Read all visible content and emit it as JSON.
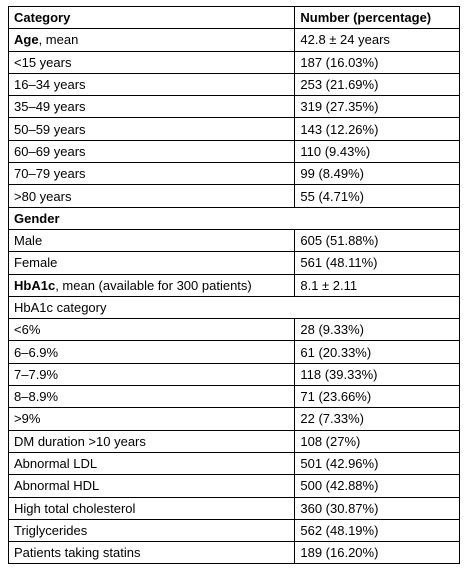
{
  "header": {
    "category": "Category",
    "number": "Number (percentage)"
  },
  "age": {
    "label_bold": "Age",
    "label_rest": ", mean",
    "value": "42.8 ± 24 years",
    "rows": [
      {
        "label": "<15 years",
        "value": "187 (16.03%)"
      },
      {
        "label": "16–34 years",
        "value": "253 (21.69%)"
      },
      {
        "label": "35–49 years",
        "value": "319 (27.35%)"
      },
      {
        "label": "50–59 years",
        "value": "143 (12.26%)"
      },
      {
        "label": "60–69 years",
        "value": "110 (9.43%)"
      },
      {
        "label": "70–79 years",
        "value": "99 (8.49%)"
      },
      {
        "label": ">80 years",
        "value": "55 (4.71%)"
      }
    ]
  },
  "gender": {
    "label": "Gender",
    "rows": [
      {
        "label": "Male",
        "value": "605 (51.88%)"
      },
      {
        "label": "Female",
        "value": "561 (48.11%)"
      }
    ]
  },
  "hba1c": {
    "label_bold": "HbA1c",
    "label_rest": ", mean (available for 300 patients)",
    "value": "8.1 ± 2.11",
    "category_label": "HbA1c category",
    "rows": [
      {
        "label": "<6%",
        "value": "28 (9.33%)"
      },
      {
        "label": "6–6.9%",
        "value": "61 (20.33%)"
      },
      {
        "label": "7–7.9%",
        "value": "118 (39.33%)"
      },
      {
        "label": "8–8.9%",
        "value": "71 (23.66%)"
      },
      {
        "label": ">9%",
        "value": "22 (7.33%)"
      }
    ]
  },
  "other": [
    {
      "label": "DM duration >10 years",
      "value": "108 (27%)"
    },
    {
      "label": "Abnormal LDL",
      "value": "501 (42.96%)"
    },
    {
      "label": "Abnormal HDL",
      "value": "500 (42.88%)"
    },
    {
      "label": "High total cholesterol",
      "value": "360 (30.87%)"
    },
    {
      "label": "Triglycerides",
      "value": "562 (48.19%)"
    },
    {
      "label": "Patients taking statins",
      "value": "189 (16.20%)"
    }
  ]
}
